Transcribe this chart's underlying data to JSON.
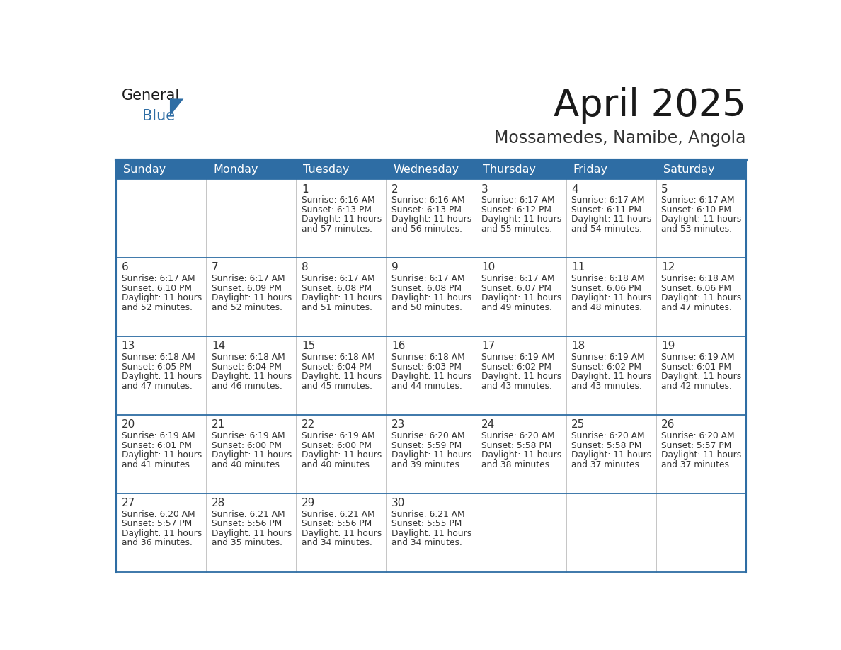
{
  "title": "April 2025",
  "subtitle": "Mossamedes, Namibe, Angola",
  "header_bg": "#2E6DA4",
  "header_text_color": "#FFFFFF",
  "cell_bg": "#FFFFFF",
  "cell_text_color": "#333333",
  "days_of_week": [
    "Sunday",
    "Monday",
    "Tuesday",
    "Wednesday",
    "Thursday",
    "Friday",
    "Saturday"
  ],
  "calendar_data": [
    [
      {
        "day": "",
        "sunrise": "",
        "sunset": "",
        "daylight": ""
      },
      {
        "day": "",
        "sunrise": "",
        "sunset": "",
        "daylight": ""
      },
      {
        "day": "1",
        "sunrise": "6:16 AM",
        "sunset": "6:13 PM",
        "daylight": "11 hours\nand 57 minutes."
      },
      {
        "day": "2",
        "sunrise": "6:16 AM",
        "sunset": "6:13 PM",
        "daylight": "11 hours\nand 56 minutes."
      },
      {
        "day": "3",
        "sunrise": "6:17 AM",
        "sunset": "6:12 PM",
        "daylight": "11 hours\nand 55 minutes."
      },
      {
        "day": "4",
        "sunrise": "6:17 AM",
        "sunset": "6:11 PM",
        "daylight": "11 hours\nand 54 minutes."
      },
      {
        "day": "5",
        "sunrise": "6:17 AM",
        "sunset": "6:10 PM",
        "daylight": "11 hours\nand 53 minutes."
      }
    ],
    [
      {
        "day": "6",
        "sunrise": "6:17 AM",
        "sunset": "6:10 PM",
        "daylight": "11 hours\nand 52 minutes."
      },
      {
        "day": "7",
        "sunrise": "6:17 AM",
        "sunset": "6:09 PM",
        "daylight": "11 hours\nand 52 minutes."
      },
      {
        "day": "8",
        "sunrise": "6:17 AM",
        "sunset": "6:08 PM",
        "daylight": "11 hours\nand 51 minutes."
      },
      {
        "day": "9",
        "sunrise": "6:17 AM",
        "sunset": "6:08 PM",
        "daylight": "11 hours\nand 50 minutes."
      },
      {
        "day": "10",
        "sunrise": "6:17 AM",
        "sunset": "6:07 PM",
        "daylight": "11 hours\nand 49 minutes."
      },
      {
        "day": "11",
        "sunrise": "6:18 AM",
        "sunset": "6:06 PM",
        "daylight": "11 hours\nand 48 minutes."
      },
      {
        "day": "12",
        "sunrise": "6:18 AM",
        "sunset": "6:06 PM",
        "daylight": "11 hours\nand 47 minutes."
      }
    ],
    [
      {
        "day": "13",
        "sunrise": "6:18 AM",
        "sunset": "6:05 PM",
        "daylight": "11 hours\nand 47 minutes."
      },
      {
        "day": "14",
        "sunrise": "6:18 AM",
        "sunset": "6:04 PM",
        "daylight": "11 hours\nand 46 minutes."
      },
      {
        "day": "15",
        "sunrise": "6:18 AM",
        "sunset": "6:04 PM",
        "daylight": "11 hours\nand 45 minutes."
      },
      {
        "day": "16",
        "sunrise": "6:18 AM",
        "sunset": "6:03 PM",
        "daylight": "11 hours\nand 44 minutes."
      },
      {
        "day": "17",
        "sunrise": "6:19 AM",
        "sunset": "6:02 PM",
        "daylight": "11 hours\nand 43 minutes."
      },
      {
        "day": "18",
        "sunrise": "6:19 AM",
        "sunset": "6:02 PM",
        "daylight": "11 hours\nand 43 minutes."
      },
      {
        "day": "19",
        "sunrise": "6:19 AM",
        "sunset": "6:01 PM",
        "daylight": "11 hours\nand 42 minutes."
      }
    ],
    [
      {
        "day": "20",
        "sunrise": "6:19 AM",
        "sunset": "6:01 PM",
        "daylight": "11 hours\nand 41 minutes."
      },
      {
        "day": "21",
        "sunrise": "6:19 AM",
        "sunset": "6:00 PM",
        "daylight": "11 hours\nand 40 minutes."
      },
      {
        "day": "22",
        "sunrise": "6:19 AM",
        "sunset": "6:00 PM",
        "daylight": "11 hours\nand 40 minutes."
      },
      {
        "day": "23",
        "sunrise": "6:20 AM",
        "sunset": "5:59 PM",
        "daylight": "11 hours\nand 39 minutes."
      },
      {
        "day": "24",
        "sunrise": "6:20 AM",
        "sunset": "5:58 PM",
        "daylight": "11 hours\nand 38 minutes."
      },
      {
        "day": "25",
        "sunrise": "6:20 AM",
        "sunset": "5:58 PM",
        "daylight": "11 hours\nand 37 minutes."
      },
      {
        "day": "26",
        "sunrise": "6:20 AM",
        "sunset": "5:57 PM",
        "daylight": "11 hours\nand 37 minutes."
      }
    ],
    [
      {
        "day": "27",
        "sunrise": "6:20 AM",
        "sunset": "5:57 PM",
        "daylight": "11 hours\nand 36 minutes."
      },
      {
        "day": "28",
        "sunrise": "6:21 AM",
        "sunset": "5:56 PM",
        "daylight": "11 hours\nand 35 minutes."
      },
      {
        "day": "29",
        "sunrise": "6:21 AM",
        "sunset": "5:56 PM",
        "daylight": "11 hours\nand 34 minutes."
      },
      {
        "day": "30",
        "sunrise": "6:21 AM",
        "sunset": "5:55 PM",
        "daylight": "11 hours\nand 34 minutes."
      },
      {
        "day": "",
        "sunrise": "",
        "sunset": "",
        "daylight": ""
      },
      {
        "day": "",
        "sunrise": "",
        "sunset": "",
        "daylight": ""
      },
      {
        "day": "",
        "sunrise": "",
        "sunset": "",
        "daylight": ""
      }
    ]
  ],
  "logo_text1": "General",
  "logo_text2": "Blue",
  "logo_text1_color": "#1a1a1a",
  "logo_text2_color": "#2E6DA4",
  "logo_triangle_color": "#2E6DA4",
  "title_fontsize": 38,
  "subtitle_fontsize": 17,
  "header_fontsize": 11.5,
  "day_num_fontsize": 11,
  "cell_text_fontsize": 8.8
}
